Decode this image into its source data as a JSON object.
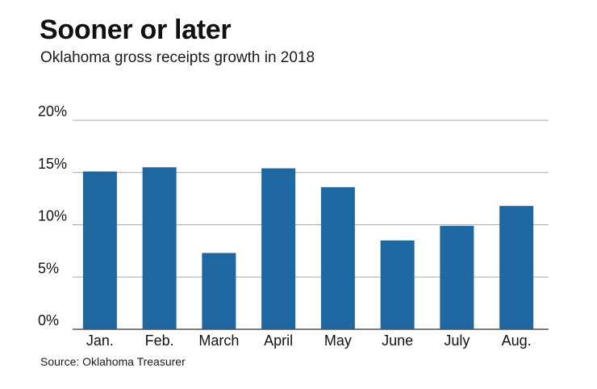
{
  "title": "Sooner or later",
  "subtitle": "Oklahoma gross receipts growth in 2018",
  "source": "Source: Oklahoma Treasurer",
  "colors": {
    "bar": "#1f67a1",
    "grid": "#a9a9a9",
    "axis": "#555555",
    "text": "#111111"
  },
  "chart_data": {
    "type": "bar",
    "title": "Sooner or later",
    "subtitle": "Oklahoma gross receipts growth in 2018",
    "xlabel": "",
    "ylabel": "",
    "categories": [
      "Jan.",
      "Feb.",
      "March",
      "April",
      "May",
      "June",
      "July",
      "Aug."
    ],
    "values": [
      15.1,
      15.5,
      7.3,
      15.4,
      13.6,
      8.5,
      9.9,
      11.8
    ],
    "unit": "%",
    "ylim": [
      0,
      20
    ],
    "yticks": [
      0,
      5,
      10,
      15,
      20
    ],
    "ytick_labels": [
      "0%",
      "5%",
      "10%",
      "15%",
      "20%"
    ],
    "grid": true,
    "legend": "none"
  }
}
